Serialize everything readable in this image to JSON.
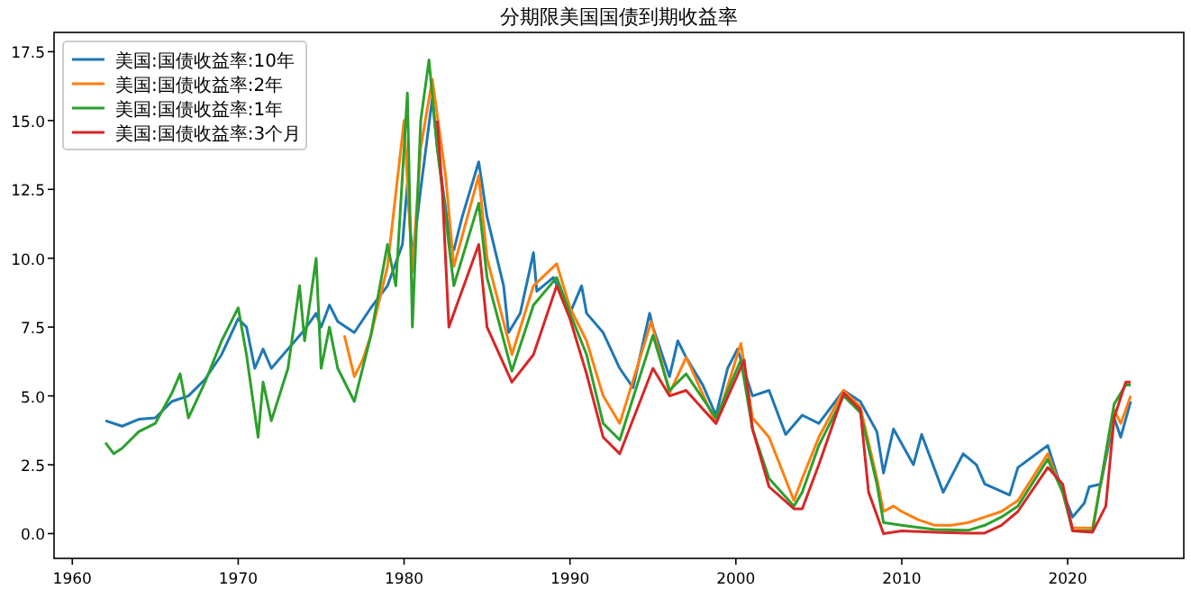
{
  "chart_data": {
    "type": "line",
    "title": "分期限美国国债到期收益率",
    "legend": "top left",
    "grid": false,
    "line_style": "solid",
    "marker": "none",
    "xlim": [
      1958.9,
      2027.0
    ],
    "ylim": [
      -0.9,
      18.2
    ],
    "xticks": [
      1960,
      1970,
      1980,
      1990,
      2000,
      2010,
      2020
    ],
    "yticks": [
      {
        "value": 0,
        "label": "0.0"
      },
      {
        "value": 2.5,
        "label": "2.5"
      },
      {
        "value": 5,
        "label": "5.0"
      },
      {
        "value": 7.5,
        "label": "7.5"
      },
      {
        "value": 10,
        "label": "10.0"
      },
      {
        "value": 12.5,
        "label": "12.5"
      },
      {
        "value": 15,
        "label": "15.0"
      },
      {
        "value": 17.5,
        "label": "17.5"
      }
    ],
    "series": [
      {
        "name": "美国:国债收益率:10年",
        "color": "#1f77b4",
        "x": [
          1962,
          1963,
          1964,
          1965,
          1966,
          1967,
          1968,
          1969,
          1970,
          1970.5,
          1971,
          1971.5,
          1972,
          1973,
          1974,
          1974.7,
          1975,
          1975.5,
          1976,
          1977,
          1978,
          1979,
          1979.9,
          1980.2,
          1980.5,
          1981,
          1981.7,
          1982,
          1982.8,
          1983,
          1983.5,
          1984.5,
          1985,
          1986,
          1986.3,
          1987,
          1987.8,
          1988,
          1989,
          1990,
          1990.7,
          1991,
          1992,
          1993,
          1993.8,
          1994.8,
          1995,
          1996,
          1996.5,
          1997,
          1998,
          1998.8,
          1999.5,
          2000.1,
          2001,
          2002,
          2003,
          2004,
          2005,
          2006.5,
          2007.5,
          2008.5,
          2008.9,
          2009.5,
          2010.7,
          2011.2,
          2012.5,
          2013.7,
          2014.5,
          2015,
          2016.5,
          2017,
          2018.8,
          2019.7,
          2020.3,
          2021,
          2021.3,
          2022,
          2022.8,
          2023.2,
          2023.8
        ],
        "values": [
          4.1,
          3.9,
          4.15,
          4.2,
          4.8,
          5.0,
          5.6,
          6.5,
          7.8,
          7.5,
          6.0,
          6.7,
          6.0,
          6.7,
          7.4,
          8.0,
          7.5,
          8.3,
          7.7,
          7.3,
          8.2,
          9.0,
          10.5,
          12.7,
          10.0,
          12.5,
          15.8,
          14.0,
          10.5,
          10.3,
          11.5,
          13.5,
          11.5,
          9.0,
          7.3,
          8.0,
          10.2,
          8.8,
          9.3,
          8.0,
          9.0,
          8.0,
          7.3,
          6.0,
          5.3,
          8.0,
          7.5,
          5.7,
          7.0,
          6.4,
          5.4,
          4.3,
          6.0,
          6.7,
          5.0,
          5.2,
          3.6,
          4.3,
          4.0,
          5.2,
          4.8,
          3.7,
          2.2,
          3.8,
          2.5,
          3.6,
          1.5,
          2.9,
          2.5,
          1.8,
          1.4,
          2.4,
          3.2,
          1.5,
          0.6,
          1.1,
          1.7,
          1.8,
          4.2,
          3.5,
          4.8
        ]
      },
      {
        "name": "美国:国债收益率:2年",
        "color": "#ff7f0e",
        "x": [
          1976.4,
          1977,
          1977.5,
          1978,
          1979,
          1980.0,
          1980.5,
          1981,
          1981.7,
          1982.5,
          1983,
          1984.5,
          1985,
          1986.5,
          1987.8,
          1989.2,
          1990,
          1991,
          1992,
          1993,
          1994.9,
          1996,
          1997,
          1998.8,
          2000.3,
          2001,
          2002,
          2003.5,
          2004,
          2005,
          2006.5,
          2007.5,
          2008.5,
          2008.9,
          2009.5,
          2010,
          2011,
          2012,
          2013,
          2014,
          2015,
          2016,
          2017,
          2018.8,
          2019.7,
          2020.3,
          2021.5,
          2022.8,
          2023.2,
          2023.8
        ],
        "values": [
          7.2,
          5.7,
          6.3,
          7.2,
          9.7,
          15.0,
          9.5,
          14.0,
          16.5,
          13.0,
          9.7,
          13.0,
          10.0,
          6.5,
          9.0,
          9.8,
          8.2,
          7.0,
          5.0,
          4.0,
          7.7,
          5.1,
          6.4,
          4.0,
          6.9,
          4.2,
          3.5,
          1.2,
          2.0,
          3.5,
          5.2,
          4.6,
          2.0,
          0.8,
          1.0,
          0.8,
          0.5,
          0.3,
          0.3,
          0.4,
          0.6,
          0.8,
          1.2,
          2.9,
          1.5,
          0.2,
          0.2,
          4.5,
          4.0,
          5.0
        ]
      },
      {
        "name": "美国:国债收益率:1年",
        "color": "#2ca02c",
        "x": [
          1962,
          1962.5,
          1963,
          1964,
          1965,
          1966,
          1966.5,
          1967,
          1968,
          1969,
          1970,
          1970.5,
          1971.2,
          1971.5,
          1972,
          1973,
          1973.7,
          1974,
          1974.7,
          1975,
          1975.5,
          1976,
          1977,
          1977.5,
          1978,
          1979,
          1979.5,
          1980.2,
          1980.5,
          1981,
          1981.5,
          1982,
          1982.5,
          1983,
          1984.5,
          1985,
          1986.5,
          1987.8,
          1989.2,
          1990,
          1991,
          1992,
          1993,
          1995,
          1996,
          1997,
          1998.8,
          2000.3,
          2001,
          2002,
          2003.5,
          2004,
          2005,
          2006.5,
          2007.5,
          2008.5,
          2008.9,
          2010,
          2012,
          2014,
          2015,
          2016,
          2017,
          2018.8,
          2019.7,
          2020.3,
          2021.5,
          2022.8,
          2023.5,
          2023.8
        ],
        "values": [
          3.3,
          2.9,
          3.1,
          3.7,
          4.0,
          5.1,
          5.8,
          4.2,
          5.5,
          7.0,
          8.2,
          6.5,
          3.5,
          5.5,
          4.1,
          6.0,
          9.0,
          7.0,
          10.0,
          6.0,
          7.5,
          6.0,
          4.8,
          6.0,
          7.2,
          10.5,
          9.0,
          16.0,
          7.5,
          15.0,
          17.2,
          14.0,
          11.5,
          9.0,
          12.0,
          9.3,
          5.9,
          8.3,
          9.3,
          8.0,
          6.5,
          4.0,
          3.4,
          7.2,
          5.2,
          5.8,
          4.2,
          6.3,
          3.8,
          2.0,
          1.0,
          1.5,
          3.2,
          5.0,
          4.4,
          1.8,
          0.4,
          0.3,
          0.15,
          0.12,
          0.3,
          0.6,
          1.0,
          2.7,
          1.5,
          0.1,
          0.1,
          4.7,
          5.4,
          5.4
        ]
      },
      {
        "name": "美国:国债收益率:3个月",
        "color": "#d62728",
        "x": [
          1982,
          1982.3,
          1982.7,
          1983,
          1984.5,
          1985,
          1986.5,
          1987.8,
          1989.2,
          1990,
          1991,
          1992,
          1993,
          1995,
          1996,
          1997,
          1998.8,
          2000.5,
          2001,
          2002,
          2003.5,
          2004,
          2005,
          2006.5,
          2007.5,
          2008,
          2008.9,
          2010,
          2012,
          2014,
          2015,
          2016,
          2017,
          2018.8,
          2019.7,
          2020.3,
          2021.5,
          2022.3,
          2022.8,
          2023.5,
          2023.8
        ],
        "values": [
          15.0,
          12.5,
          7.5,
          8.0,
          10.5,
          7.5,
          5.5,
          6.5,
          9.0,
          7.8,
          5.8,
          3.5,
          2.9,
          6.0,
          5.0,
          5.2,
          4.0,
          6.3,
          3.8,
          1.7,
          0.9,
          0.9,
          2.5,
          5.1,
          4.5,
          1.5,
          0.0,
          0.1,
          0.05,
          0.02,
          0.02,
          0.3,
          0.8,
          2.4,
          1.8,
          0.1,
          0.05,
          1.0,
          4.2,
          5.5,
          5.5
        ]
      }
    ]
  }
}
